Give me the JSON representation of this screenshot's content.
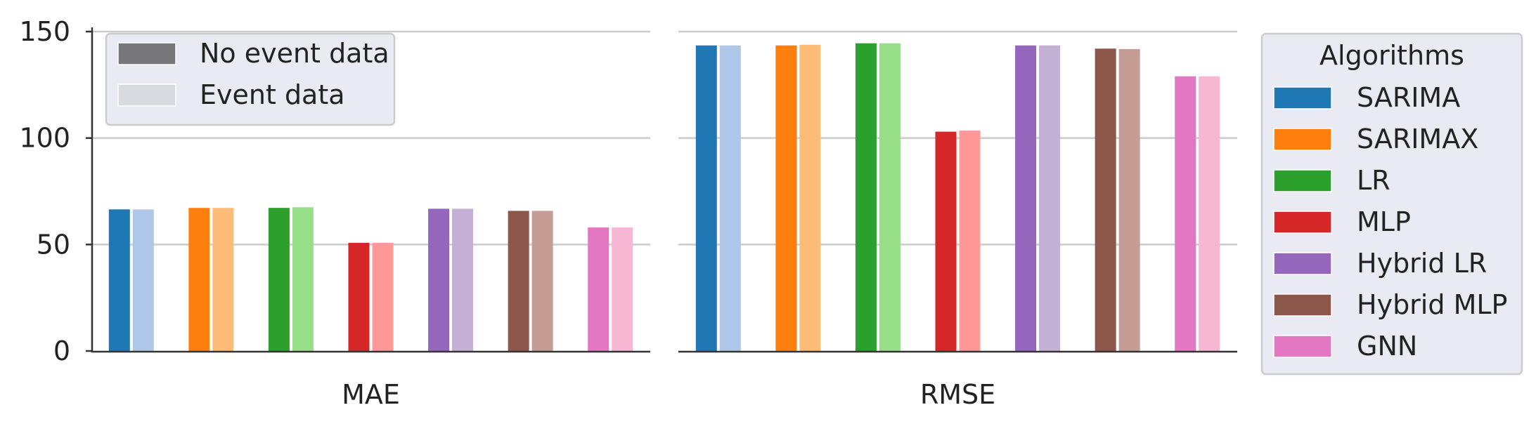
{
  "chart_data": {
    "type": "bar",
    "panels": [
      {
        "xlabel": "MAE",
        "series": [
          {
            "algorithm": "SARIMA",
            "no_event": 66.5,
            "event": 66.5
          },
          {
            "algorithm": "SARIMAX",
            "no_event": 67.2,
            "event": 67.2
          },
          {
            "algorithm": "LR",
            "no_event": 67.2,
            "event": 67.5
          },
          {
            "algorithm": "MLP",
            "no_event": 50.8,
            "event": 50.8
          },
          {
            "algorithm": "Hybrid LR",
            "no_event": 66.8,
            "event": 66.8
          },
          {
            "algorithm": "Hybrid MLP",
            "no_event": 65.8,
            "event": 65.8
          },
          {
            "algorithm": "GNN",
            "no_event": 58.0,
            "event": 58.0
          }
        ]
      },
      {
        "xlabel": "RMSE",
        "series": [
          {
            "algorithm": "SARIMA",
            "no_event": 143.5,
            "event": 143.5
          },
          {
            "algorithm": "SARIMAX",
            "no_event": 143.5,
            "event": 143.8
          },
          {
            "algorithm": "LR",
            "no_event": 144.5,
            "event": 144.5
          },
          {
            "algorithm": "MLP",
            "no_event": 103.0,
            "event": 103.5
          },
          {
            "algorithm": "Hybrid LR",
            "no_event": 143.5,
            "event": 143.5
          },
          {
            "algorithm": "Hybrid MLP",
            "no_event": 142.0,
            "event": 141.8
          },
          {
            "algorithm": "GNN",
            "no_event": 129.0,
            "event": 129.0
          }
        ]
      }
    ],
    "ylim": [
      0,
      150
    ],
    "yticks": [
      "0",
      "50",
      "100",
      "150"
    ],
    "grid": "horizontal",
    "legend_event": {
      "placement": "top-left",
      "entries": [
        {
          "label": "No event data",
          "color": "#77767b"
        },
        {
          "label": "Event data",
          "color": "#d9d9e0"
        }
      ]
    },
    "legend_algorithms": {
      "title": "Algorithms",
      "placement": "outside-right",
      "entries": [
        {
          "label": "SARIMA",
          "dark": "#1f77b4",
          "light": "#aec7e8"
        },
        {
          "label": "SARIMAX",
          "dark": "#ff7f0e",
          "light": "#ffbb78"
        },
        {
          "label": "LR",
          "dark": "#2ca02c",
          "light": "#98df8a"
        },
        {
          "label": "MLP",
          "dark": "#d62728",
          "light": "#ff9896"
        },
        {
          "label": "Hybrid LR",
          "dark": "#9467bd",
          "light": "#c5b0d5"
        },
        {
          "label": "Hybrid MLP",
          "dark": "#8c564b",
          "light": "#c49c94"
        },
        {
          "label": "GNN",
          "dark": "#e377c2",
          "light": "#f7b6d2"
        }
      ]
    }
  }
}
